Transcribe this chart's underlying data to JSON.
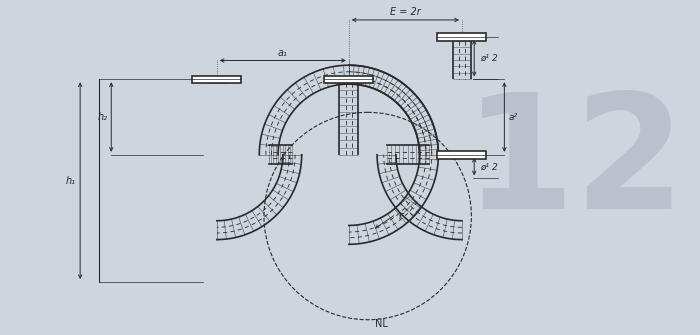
{
  "bg_color": "#cdd5df",
  "line_color": "#2a2a2a",
  "number_color": "#b8bfcc",
  "title_number": "12",
  "labels": {
    "E": "E = 2r",
    "a1": "a₁",
    "h1": "h₁",
    "h2": "h₂",
    "NL": "NL",
    "r": "r",
    "d12_top": "ø¹ 2",
    "a2": "a²",
    "d12_bot": "ø¹ 2"
  }
}
